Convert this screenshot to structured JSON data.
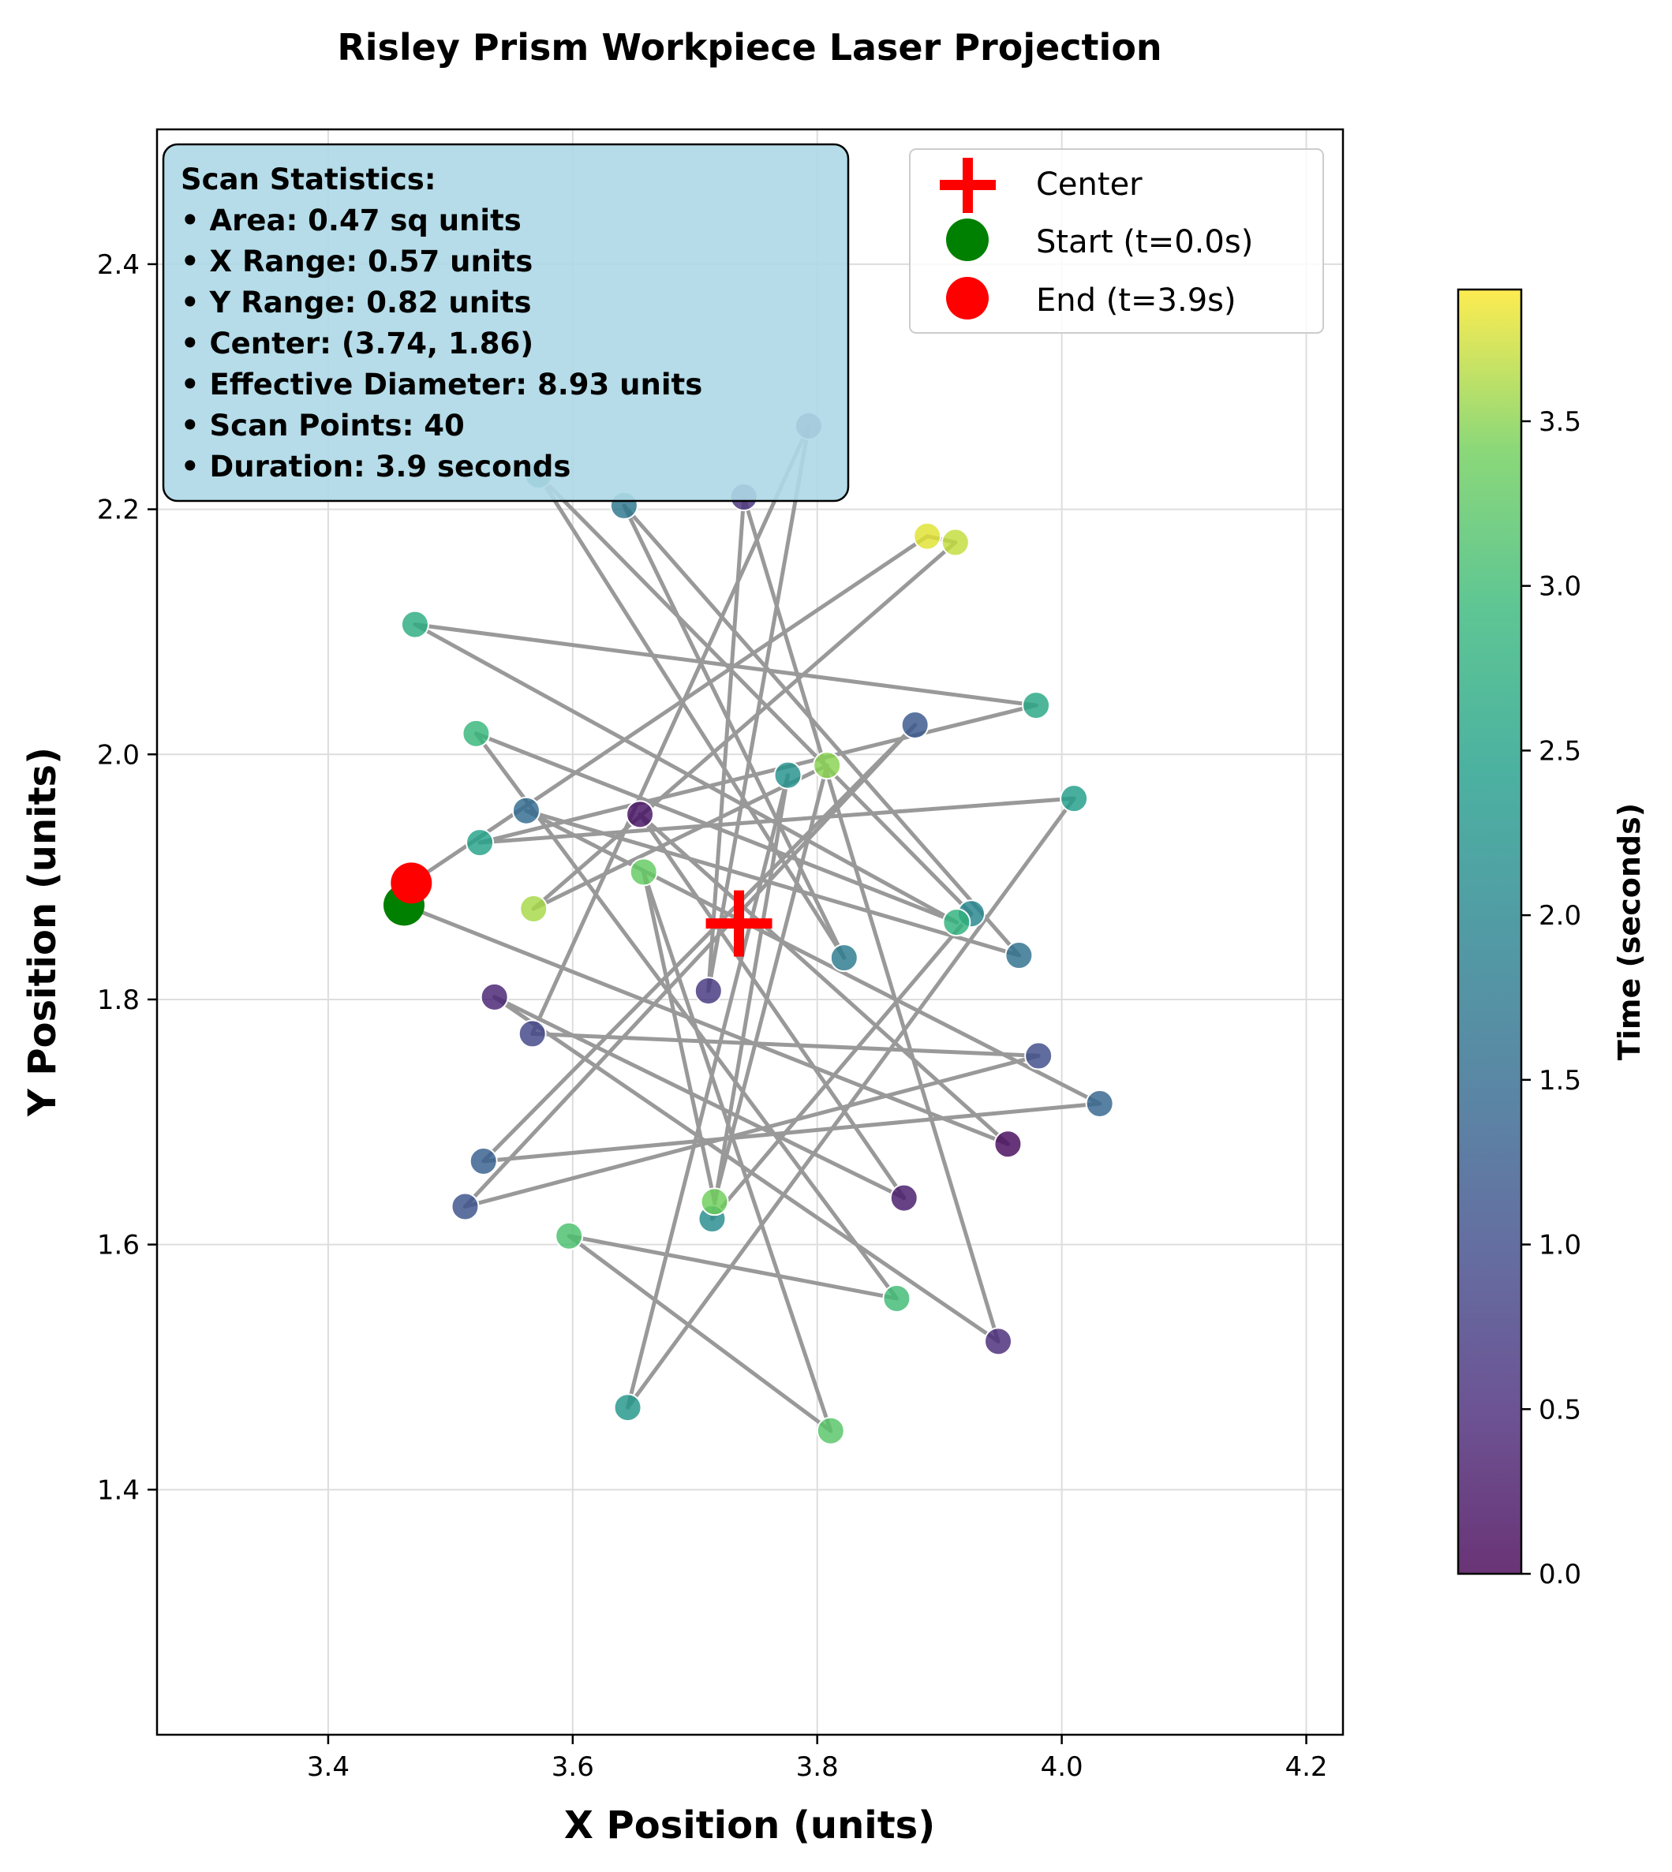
{
  "chart_data": {
    "type": "scatter",
    "title": "Risley Prism Workpiece Laser Projection",
    "xlabel": "X Position (units)",
    "ylabel": "Y Position (units)",
    "xlim": [
      3.26,
      4.23
    ],
    "ylim": [
      1.2,
      2.51
    ],
    "xticks": [
      3.4,
      3.6,
      3.8,
      4.0,
      4.2
    ],
    "xtick_labels": [
      "3.4",
      "3.6",
      "3.8",
      "4.0",
      "4.2"
    ],
    "yticks": [
      1.4,
      1.6,
      1.8,
      2.0,
      2.2,
      2.4
    ],
    "ytick_labels": [
      "1.4",
      "1.6",
      "1.8",
      "2.0",
      "2.2",
      "2.4"
    ],
    "grid": true,
    "colormap": "viridis",
    "path_color": "#999999",
    "points": [
      {
        "x": 3.462,
        "y": 1.877,
        "t": 0.0
      },
      {
        "x": 3.956,
        "y": 1.682,
        "t": 0.1
      },
      {
        "x": 3.655,
        "y": 1.951,
        "t": 0.2
      },
      {
        "x": 3.871,
        "y": 1.638,
        "t": 0.3
      },
      {
        "x": 3.536,
        "y": 1.802,
        "t": 0.4
      },
      {
        "x": 3.948,
        "y": 1.521,
        "t": 0.5
      },
      {
        "x": 3.74,
        "y": 2.21,
        "t": 0.6
      },
      {
        "x": 3.711,
        "y": 1.807,
        "t": 0.7
      },
      {
        "x": 3.793,
        "y": 2.268,
        "t": 0.8
      },
      {
        "x": 3.567,
        "y": 1.772,
        "t": 0.9
      },
      {
        "x": 3.981,
        "y": 1.754,
        "t": 1.0
      },
      {
        "x": 3.512,
        "y": 1.631,
        "t": 1.1
      },
      {
        "x": 3.88,
        "y": 2.024,
        "t": 1.2
      },
      {
        "x": 3.527,
        "y": 1.668,
        "t": 1.3
      },
      {
        "x": 4.031,
        "y": 1.715,
        "t": 1.4
      },
      {
        "x": 3.562,
        "y": 1.954,
        "t": 1.5
      },
      {
        "x": 3.965,
        "y": 1.836,
        "t": 1.6
      },
      {
        "x": 3.642,
        "y": 2.203,
        "t": 1.7
      },
      {
        "x": 3.822,
        "y": 1.834,
        "t": 1.8
      },
      {
        "x": 3.572,
        "y": 2.228,
        "t": 1.9
      },
      {
        "x": 3.926,
        "y": 1.87,
        "t": 2.0
      },
      {
        "x": 3.714,
        "y": 1.621,
        "t": 2.1
      },
      {
        "x": 3.776,
        "y": 1.983,
        "t": 2.2
      },
      {
        "x": 3.645,
        "y": 1.467,
        "t": 2.3
      },
      {
        "x": 4.01,
        "y": 1.964,
        "t": 2.4
      },
      {
        "x": 3.524,
        "y": 1.928,
        "t": 2.5
      },
      {
        "x": 3.979,
        "y": 2.04,
        "t": 2.6
      },
      {
        "x": 3.471,
        "y": 2.106,
        "t": 2.7
      },
      {
        "x": 3.914,
        "y": 1.863,
        "t": 2.8
      },
      {
        "x": 3.521,
        "y": 2.017,
        "t": 2.9
      },
      {
        "x": 3.865,
        "y": 1.556,
        "t": 3.0
      },
      {
        "x": 3.597,
        "y": 1.607,
        "t": 3.1
      },
      {
        "x": 3.811,
        "y": 1.448,
        "t": 3.2
      },
      {
        "x": 3.658,
        "y": 1.904,
        "t": 3.3
      },
      {
        "x": 3.716,
        "y": 1.635,
        "t": 3.4
      },
      {
        "x": 3.808,
        "y": 1.991,
        "t": 3.5
      },
      {
        "x": 3.568,
        "y": 1.874,
        "t": 3.6
      },
      {
        "x": 3.913,
        "y": 2.173,
        "t": 3.7
      },
      {
        "x": 3.89,
        "y": 2.178,
        "t": 3.8
      },
      {
        "x": 3.468,
        "y": 1.895,
        "t": 3.9
      }
    ],
    "center": {
      "x": 3.736,
      "y": 1.862
    },
    "legend": {
      "position": "top-right",
      "entries": [
        {
          "label": "Center",
          "marker": "plus",
          "color": "#ff0000"
        },
        {
          "label": "Start (t=0.0s)",
          "marker": "circle",
          "color": "#008000"
        },
        {
          "label": "End (t=3.9s)",
          "marker": "circle",
          "color": "#ff0000"
        }
      ]
    },
    "colorbar": {
      "label": "Time (seconds)",
      "range": [
        0.0,
        3.9
      ],
      "ticks": [
        0.0,
        0.5,
        1.0,
        1.5,
        2.0,
        2.5,
        3.0,
        3.5
      ],
      "tick_labels": [
        "0.0",
        "0.5",
        "1.0",
        "1.5",
        "2.0",
        "2.5",
        "3.0",
        "3.5"
      ]
    },
    "stats_box": {
      "lines": [
        "Scan Statistics:",
        "• Area: 0.47 sq units",
        "• X Range: 0.57 units",
        "• Y Range: 0.82 units",
        "• Center: (3.74, 1.86)",
        "• Effective Diameter: 8.93 units",
        "• Scan Points: 40",
        "• Duration: 3.9 seconds"
      ],
      "background": "#add8e6"
    }
  }
}
